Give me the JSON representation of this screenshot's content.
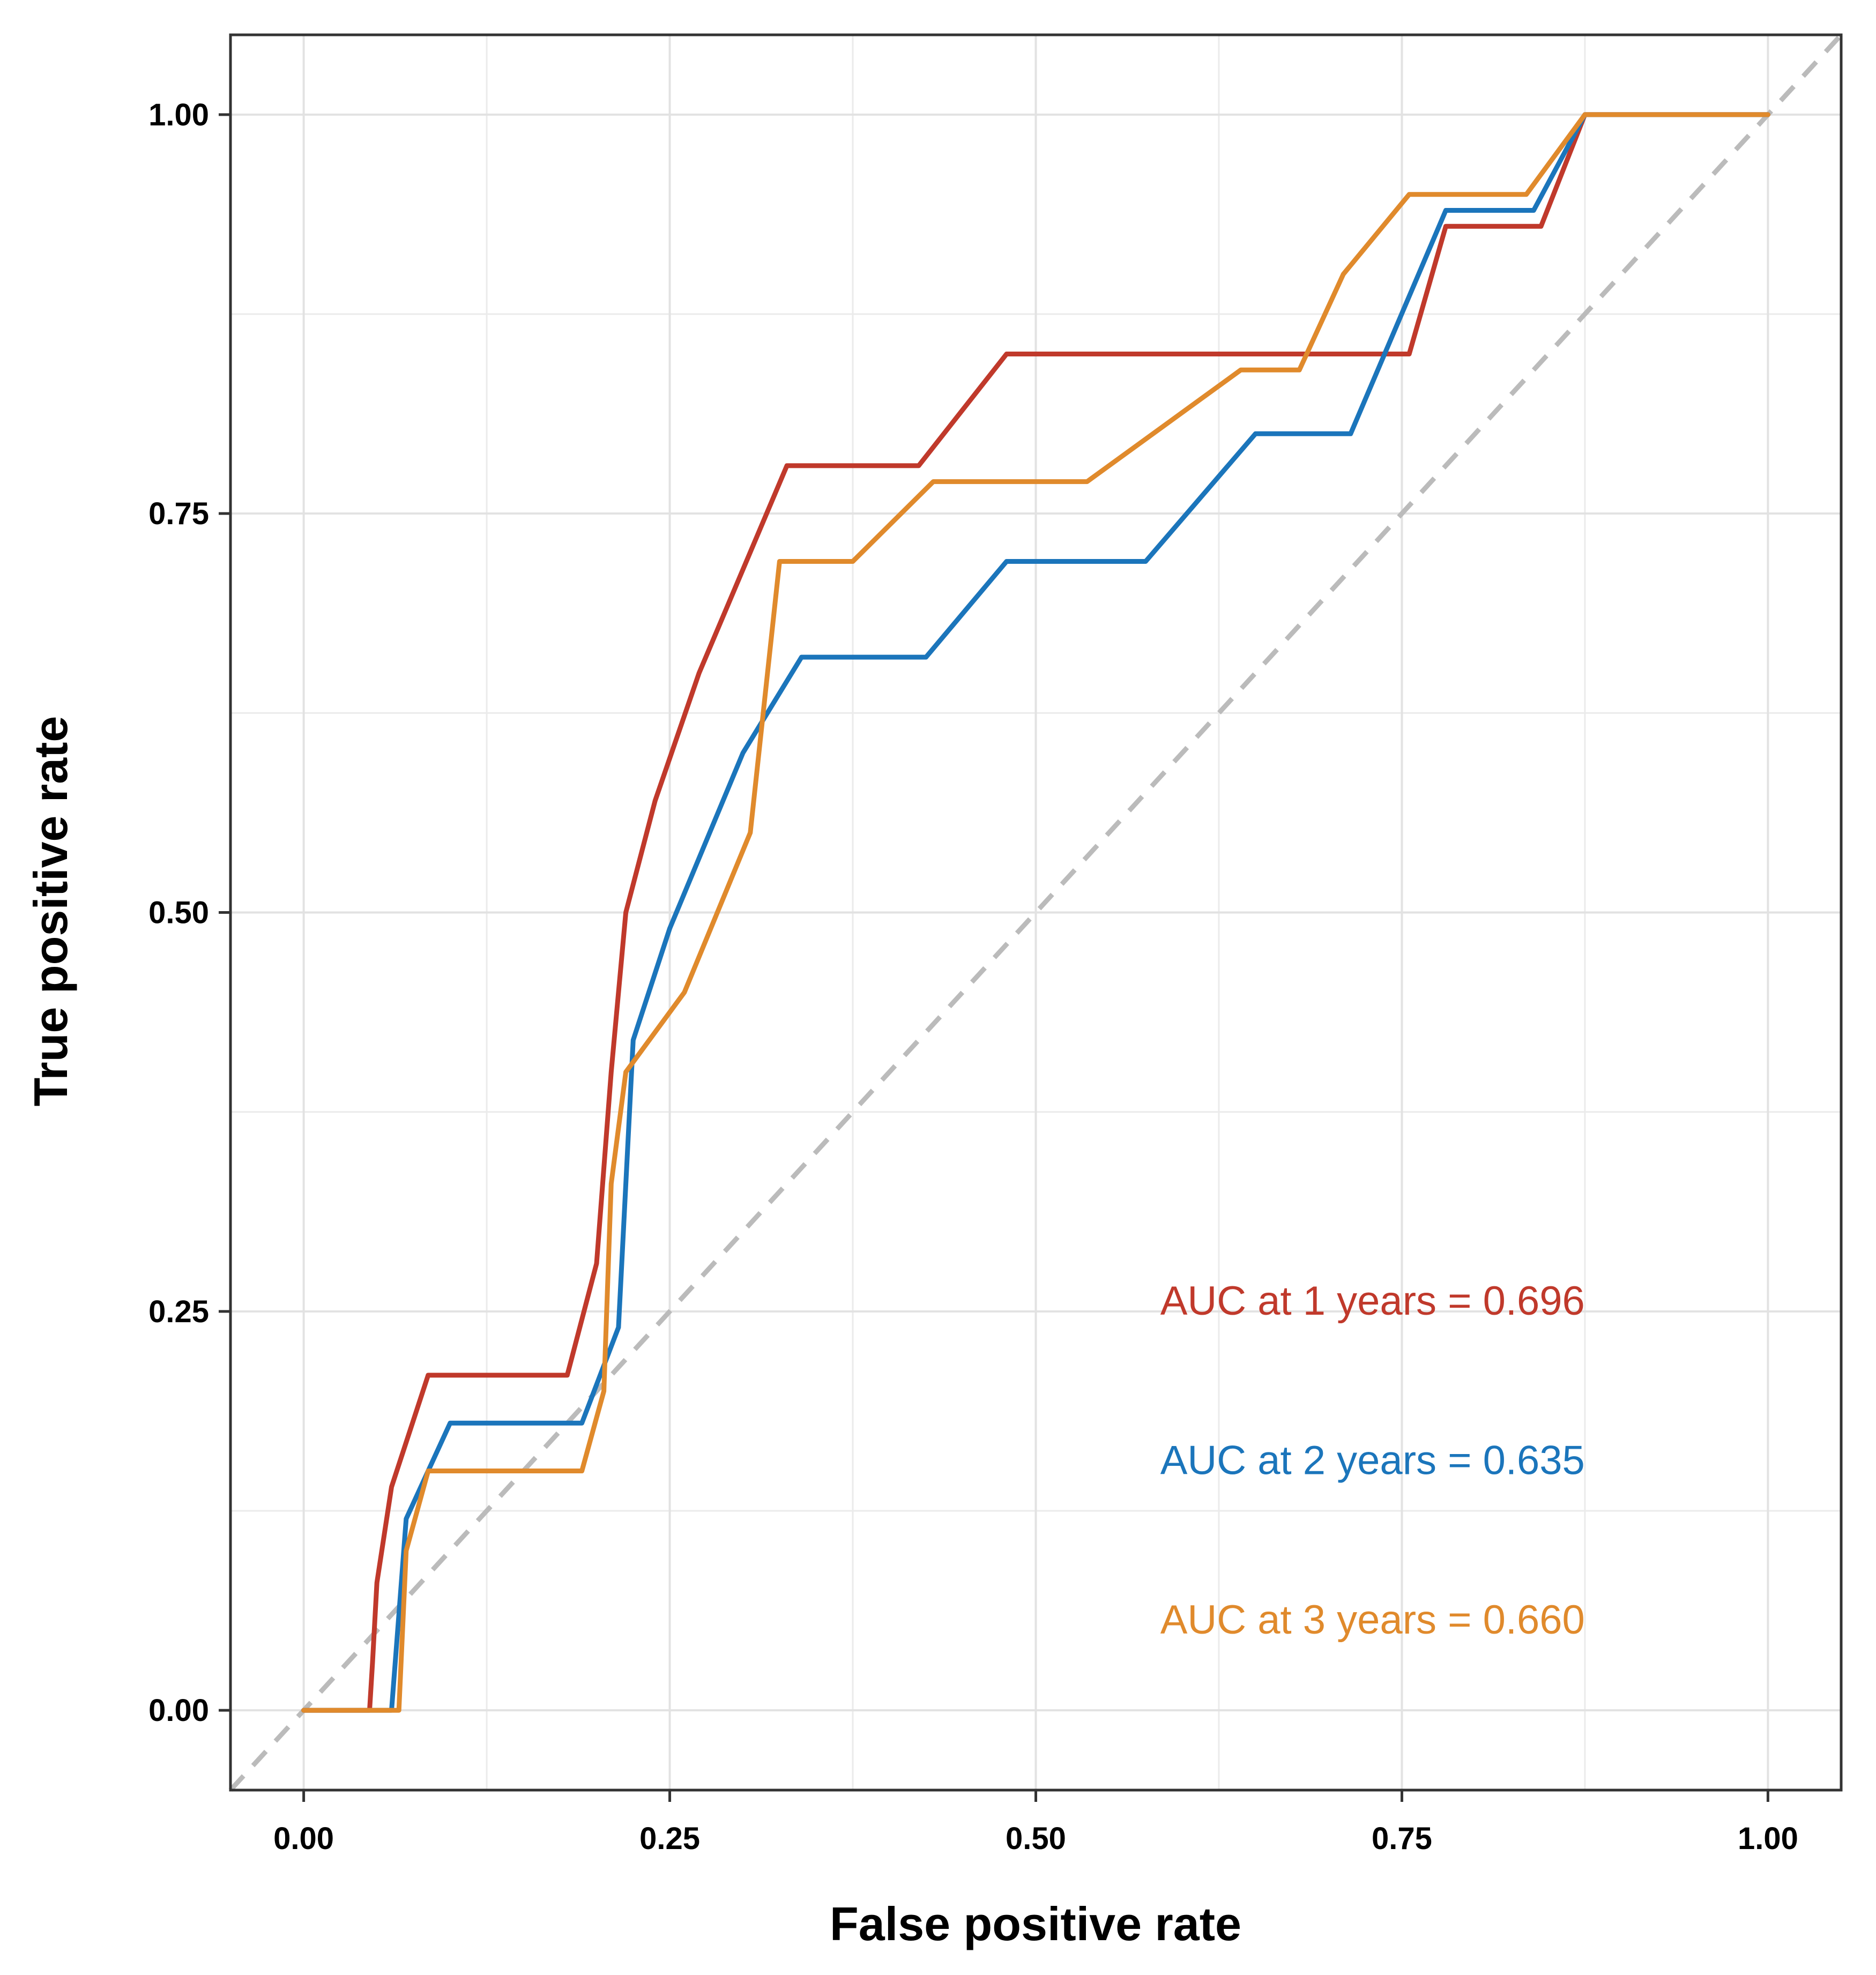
{
  "chart_data": {
    "type": "line",
    "title": "",
    "xlabel": "False positive rate",
    "ylabel": "True positive rate",
    "xlim": [
      -0.05,
      1.05
    ],
    "ylim": [
      -0.05,
      1.05
    ],
    "x_ticks": [
      0.0,
      0.25,
      0.5,
      0.75,
      1.0
    ],
    "x_tick_labels": [
      "0.00",
      "0.25",
      "0.50",
      "0.75",
      "1.00"
    ],
    "y_ticks": [
      0.0,
      0.25,
      0.5,
      0.75,
      1.0
    ],
    "y_tick_labels": [
      "0.00",
      "0.25",
      "0.50",
      "0.75",
      "1.00"
    ],
    "grid": true,
    "diagonal": {
      "color": "#BBBBBB",
      "dash": true
    },
    "series": [
      {
        "name": "1 years",
        "color": "#C0392B",
        "points": [
          [
            0.0,
            0.0
          ],
          [
            0.045,
            0.0
          ],
          [
            0.047,
            0.03
          ],
          [
            0.05,
            0.08
          ],
          [
            0.06,
            0.14
          ],
          [
            0.085,
            0.21
          ],
          [
            0.18,
            0.21
          ],
          [
            0.2,
            0.28
          ],
          [
            0.21,
            0.4
          ],
          [
            0.22,
            0.5
          ],
          [
            0.24,
            0.57
          ],
          [
            0.27,
            0.65
          ],
          [
            0.33,
            0.78
          ],
          [
            0.42,
            0.78
          ],
          [
            0.48,
            0.85
          ],
          [
            0.755,
            0.85
          ],
          [
            0.78,
            0.93
          ],
          [
            0.845,
            0.93
          ],
          [
            0.875,
            1.0
          ],
          [
            1.0,
            1.0
          ]
        ]
      },
      {
        "name": "2 years",
        "color": "#1B75BB",
        "points": [
          [
            0.0,
            0.0
          ],
          [
            0.06,
            0.0
          ],
          [
            0.065,
            0.06
          ],
          [
            0.07,
            0.12
          ],
          [
            0.1,
            0.18
          ],
          [
            0.19,
            0.18
          ],
          [
            0.215,
            0.24
          ],
          [
            0.22,
            0.33
          ],
          [
            0.225,
            0.42
          ],
          [
            0.25,
            0.49
          ],
          [
            0.3,
            0.6
          ],
          [
            0.34,
            0.66
          ],
          [
            0.425,
            0.66
          ],
          [
            0.48,
            0.72
          ],
          [
            0.575,
            0.72
          ],
          [
            0.65,
            0.8
          ],
          [
            0.715,
            0.8
          ],
          [
            0.78,
            0.94
          ],
          [
            0.84,
            0.94
          ],
          [
            0.875,
            1.0
          ],
          [
            1.0,
            1.0
          ]
        ]
      },
      {
        "name": "3 years",
        "color": "#E08A2C",
        "points": [
          [
            0.0,
            0.0
          ],
          [
            0.065,
            0.0
          ],
          [
            0.07,
            0.1
          ],
          [
            0.085,
            0.15
          ],
          [
            0.19,
            0.15
          ],
          [
            0.205,
            0.2
          ],
          [
            0.21,
            0.33
          ],
          [
            0.22,
            0.4
          ],
          [
            0.26,
            0.45
          ],
          [
            0.305,
            0.55
          ],
          [
            0.325,
            0.72
          ],
          [
            0.375,
            0.72
          ],
          [
            0.43,
            0.77
          ],
          [
            0.535,
            0.77
          ],
          [
            0.64,
            0.84
          ],
          [
            0.68,
            0.84
          ],
          [
            0.71,
            0.9
          ],
          [
            0.755,
            0.95
          ],
          [
            0.835,
            0.95
          ],
          [
            0.875,
            1.0
          ],
          [
            1.0,
            1.0
          ]
        ]
      }
    ],
    "annotations": [
      {
        "text": "AUC at 1 years = 0.696",
        "x": 0.585,
        "y": 0.248,
        "color": "#C0392B"
      },
      {
        "text": "AUC at 2 years = 0.635",
        "x": 0.585,
        "y": 0.148,
        "color": "#1B75BB"
      },
      {
        "text": "AUC at 3 years = 0.660",
        "x": 0.585,
        "y": 0.048,
        "color": "#E08A2C"
      }
    ]
  }
}
